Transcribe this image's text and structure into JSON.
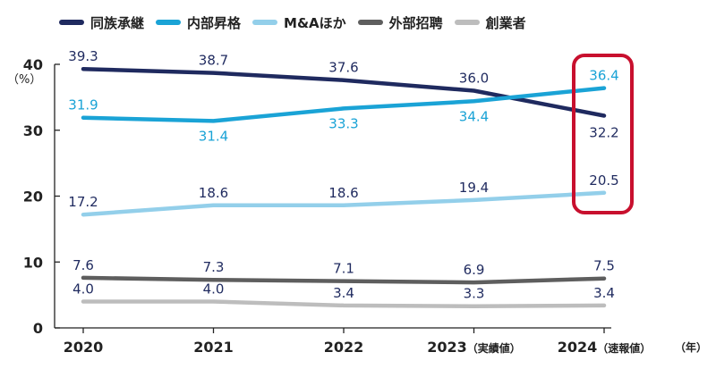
{
  "legend": {
    "items": [
      {
        "label": "同族承継",
        "color": "#1f2a5f"
      },
      {
        "label": "内部昇格",
        "color": "#1aa3d6"
      },
      {
        "label": "M&Aほか",
        "color": "#93cfea"
      },
      {
        "label": "外部招聘",
        "color": "#5e5e5e"
      },
      {
        "label": "創業者",
        "color": "#bdbdbd"
      }
    ]
  },
  "unit_label": "（%）",
  "highlight_color": "#c8102e",
  "chart_data": {
    "type": "line",
    "title": "",
    "xlabel": "（年）",
    "ylabel": "（%）",
    "ylim": [
      0,
      40
    ],
    "yticks": [
      "0",
      "10",
      "20",
      "30",
      "40"
    ],
    "categories": [
      "2020",
      "2021",
      "2022",
      "2023（実績値）",
      "2024（速報値）"
    ],
    "highlighted_category": "2024（速報値）",
    "series": [
      {
        "name": "同族承継",
        "values": [
          39.3,
          38.7,
          37.6,
          36.0,
          32.2
        ],
        "labels": [
          "39.3",
          "38.7",
          "37.6",
          "36.0",
          "32.2"
        ],
        "color": "#1f2a5f",
        "label_color": "#1f2a5f"
      },
      {
        "name": "内部昇格",
        "values": [
          31.9,
          31.4,
          33.3,
          34.4,
          36.4
        ],
        "labels": [
          "31.9",
          "31.4",
          "33.3",
          "34.4",
          "36.4"
        ],
        "color": "#1aa3d6",
        "label_color": "#1aa3d6"
      },
      {
        "name": "M&Aほか",
        "values": [
          17.2,
          18.6,
          18.6,
          19.4,
          20.5
        ],
        "labels": [
          "17.2",
          "18.6",
          "18.6",
          "19.4",
          "20.5"
        ],
        "color": "#93cfea",
        "label_color": "#1f2a5f"
      },
      {
        "name": "外部招聘",
        "values": [
          7.6,
          7.3,
          7.1,
          6.9,
          7.5
        ],
        "labels": [
          "7.6",
          "7.3",
          "7.1",
          "6.9",
          "7.5"
        ],
        "color": "#5e5e5e",
        "label_color": "#1f2a5f"
      },
      {
        "name": "創業者",
        "values": [
          4.0,
          4.0,
          3.4,
          3.3,
          3.4
        ],
        "labels": [
          "4.0",
          "4.0",
          "3.4",
          "3.3",
          "3.4"
        ],
        "color": "#bdbdbd",
        "label_color": "#1f2a5f"
      }
    ]
  }
}
